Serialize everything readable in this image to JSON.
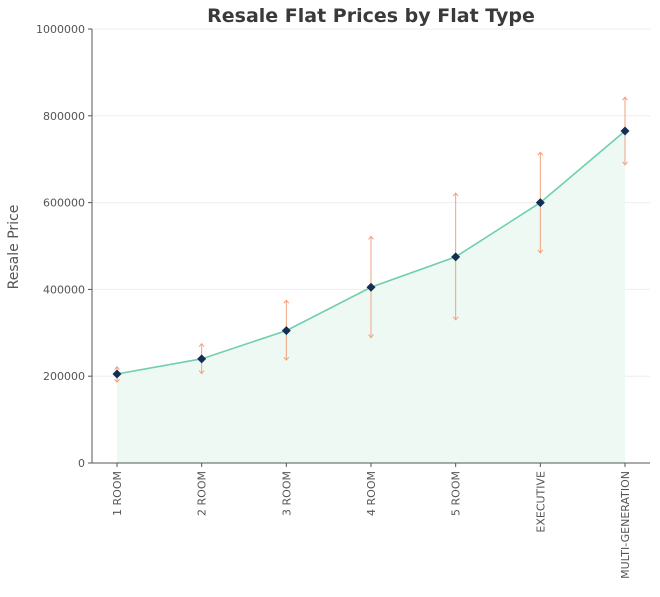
{
  "chart_data": {
    "type": "line",
    "title": "Resale Flat Prices by Flat Type",
    "xlabel": "",
    "ylabel": "Resale Price",
    "categories": [
      "1 ROOM",
      "2 ROOM",
      "3 ROOM",
      "4 ROOM",
      "5 ROOM",
      "EXECUTIVE",
      "MULTI-GENERATION"
    ],
    "series": [
      {
        "values": [
          205000,
          240000,
          305000,
          405000,
          475000,
          600000,
          765000
        ],
        "error_upper": [
          222000,
          275000,
          375000,
          522000,
          622000,
          716000,
          843000
        ],
        "error_lower": [
          186000,
          206000,
          237000,
          289000,
          330000,
          484000,
          687000
        ]
      }
    ],
    "ylim": [
      0,
      1000000
    ],
    "yticks": [
      "0",
      "200000",
      "400000",
      "600000",
      "800000",
      "1000000"
    ],
    "grid": "horizontal",
    "area_fill": true,
    "colors": {
      "line": "#6fcfae",
      "area": "#eef9f4",
      "marker": "#142f52",
      "error_bar": "#f2a27e",
      "axis": "#555555",
      "grid": "#eeeeee"
    }
  }
}
